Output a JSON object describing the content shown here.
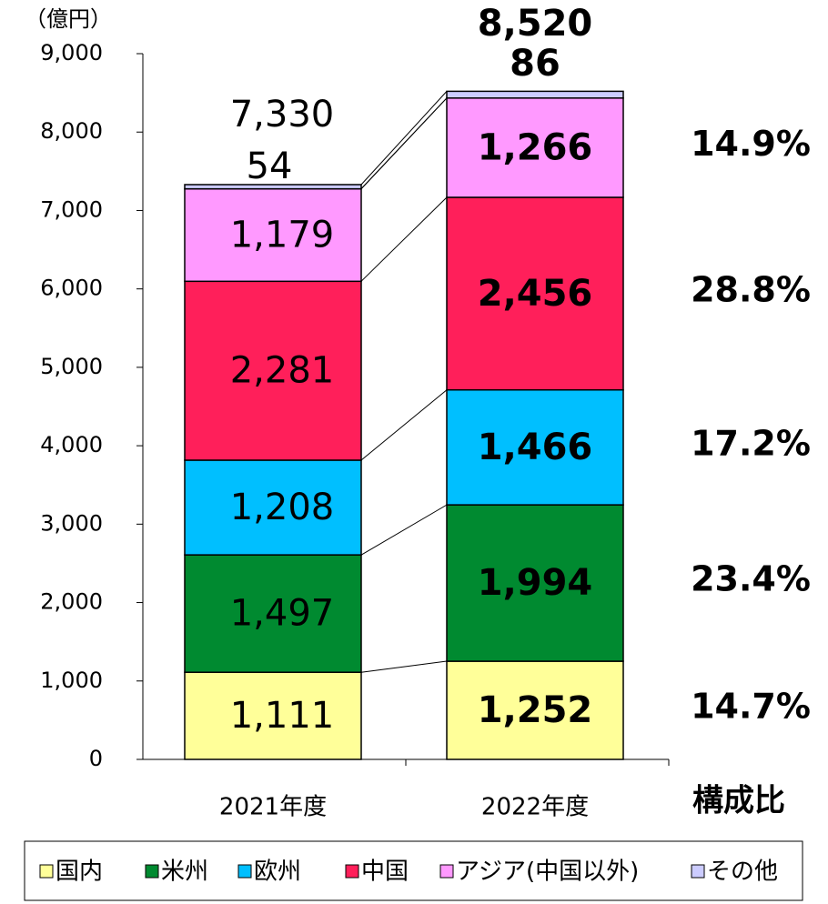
{
  "chart_data": {
    "type": "stacked_bar",
    "unit_label": "（億円）",
    "categories": [
      "2021年度",
      "2022年度"
    ],
    "series": [
      {
        "name": "国内",
        "color": "#ffff99",
        "values": [
          1111,
          1252
        ],
        "value_labels": [
          "1,111",
          "1,252"
        ],
        "share": 14.7,
        "share_label": "14.7%"
      },
      {
        "name": "米州",
        "color": "#008a30",
        "values": [
          1497,
          1994
        ],
        "value_labels": [
          "1,497",
          "1,994"
        ],
        "share": 23.4,
        "share_label": "23.4%"
      },
      {
        "name": "欧州",
        "color": "#00bfff",
        "values": [
          1208,
          1466
        ],
        "value_labels": [
          "1,208",
          "1,466"
        ],
        "share": 17.2,
        "share_label": "17.2%"
      },
      {
        "name": "中国",
        "color": "#ff1f5a",
        "values": [
          2281,
          2456
        ],
        "value_labels": [
          "2,281",
          "2,456"
        ],
        "share": 28.8,
        "share_label": "28.8%"
      },
      {
        "name": "アジア(中国以外)",
        "color": "#ff99ff",
        "values": [
          1179,
          1266
        ],
        "value_labels": [
          "1,179",
          "1,266"
        ],
        "share": 14.9,
        "share_label": "14.9%"
      },
      {
        "name": "その他",
        "color": "#ccccff",
        "values": [
          54,
          86
        ]
      }
    ],
    "totals": [
      7330,
      8520
    ],
    "total_labels": [
      "7,330",
      "8,520"
    ],
    "share_title": "構成比",
    "ylim": [
      0,
      9000
    ],
    "yticks": [
      0,
      {
        "value": 1000,
        "label": "1,000"
      },
      {
        "value": 2000,
        "label": "2,000"
      },
      {
        "value": 3000,
        "label": "3,000"
      },
      {
        "value": 4000,
        "label": "4,000"
      },
      {
        "value": 5000,
        "label": "5,000"
      },
      {
        "value": 6000,
        "label": "6,000"
      },
      {
        "value": 7000,
        "label": "7,000"
      },
      {
        "value": 8000,
        "label": "8,000"
      },
      {
        "value": 9000,
        "label": "9,000"
      }
    ],
    "legend": "bottom"
  }
}
